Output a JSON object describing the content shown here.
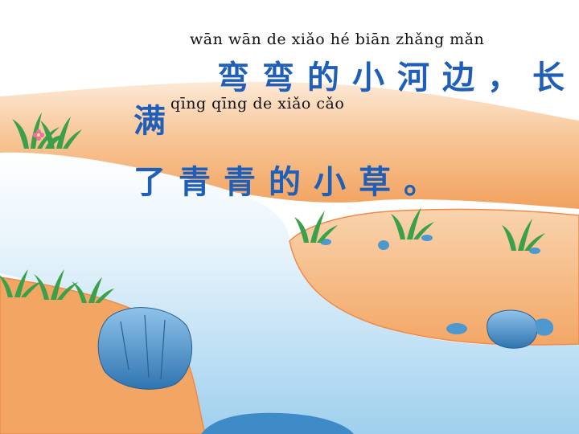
{
  "lesson": {
    "line1_pinyin": "wān   wān   de    xiǎo   hé   biān     zhǎng  mǎn",
    "line1_hanzi": "弯弯的小河边，长",
    "line2_lead_hanzi": "满",
    "line2_pinyin": "qīng  qīng   de   xiǎo   cǎo",
    "line3_hanzi": "了青青的小草。"
  },
  "scene": {
    "sky_color": "#ffffff",
    "river_color": "#a9d6ef",
    "bank_color": "#f3a865",
    "bank_edge_color": "#f28a4c",
    "rock_color": "#4d98cf",
    "grass_color": "#3aa14a",
    "flower_color": "#ef6fa0",
    "icons": [
      "grass-tuft-icon",
      "rock-icon",
      "flower-icon"
    ]
  }
}
